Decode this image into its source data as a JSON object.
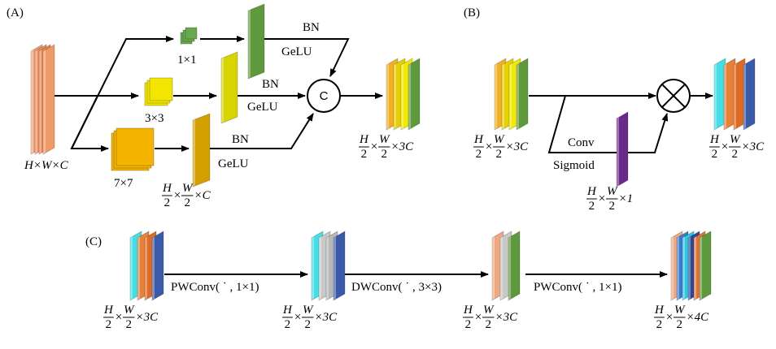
{
  "panel_a": {
    "label": "(A)",
    "input_dims": "H×W×C",
    "kernels": [
      "1×1",
      "3×3",
      "7×7"
    ],
    "branches": [
      {
        "bn": "BN",
        "act": "GeLU"
      },
      {
        "bn": "BN",
        "act": "GeLU"
      },
      {
        "bn": "BN",
        "act": "GeLU"
      }
    ],
    "concat": "C",
    "branch_dims": [
      {
        "num": "H",
        "den": "2"
      },
      "×",
      {
        "num": "W",
        "den": "2"
      },
      "×C"
    ],
    "output_dims": [
      {
        "num": "H",
        "den": "2"
      },
      "×",
      {
        "num": "W",
        "den": "2"
      },
      "×3C"
    ]
  },
  "panel_b": {
    "label": "(B)",
    "input_dims": [
      {
        "num": "H",
        "den": "2"
      },
      "×",
      {
        "num": "W",
        "den": "2"
      },
      "×3C"
    ],
    "conv": "Conv",
    "act": "Sigmoid",
    "gate_dims": [
      {
        "num": "H",
        "den": "2"
      },
      "×",
      {
        "num": "W",
        "den": "2"
      },
      "×1"
    ],
    "output_dims": [
      {
        "num": "H",
        "den": "2"
      },
      "×",
      {
        "num": "W",
        "den": "2"
      },
      "×3C"
    ]
  },
  "panel_c": {
    "label": "(C)",
    "stage_dims": [
      [
        {
          "num": "H",
          "den": "2"
        },
        "×",
        {
          "num": "W",
          "den": "2"
        },
        "×3C"
      ],
      [
        {
          "num": "H",
          "den": "2"
        },
        "×",
        {
          "num": "W",
          "den": "2"
        },
        "×3C"
      ],
      [
        {
          "num": "H",
          "den": "2"
        },
        "×",
        {
          "num": "W",
          "den": "2"
        },
        "×3C"
      ],
      [
        {
          "num": "H",
          "den": "2"
        },
        "×",
        {
          "num": "W",
          "den": "2"
        },
        "×4C"
      ]
    ],
    "ops": [
      "PWConv( ˙ , 1×1)",
      "DWConv( ˙ , 3×3)",
      "PWConv( ˙ , 1×1)"
    ]
  }
}
